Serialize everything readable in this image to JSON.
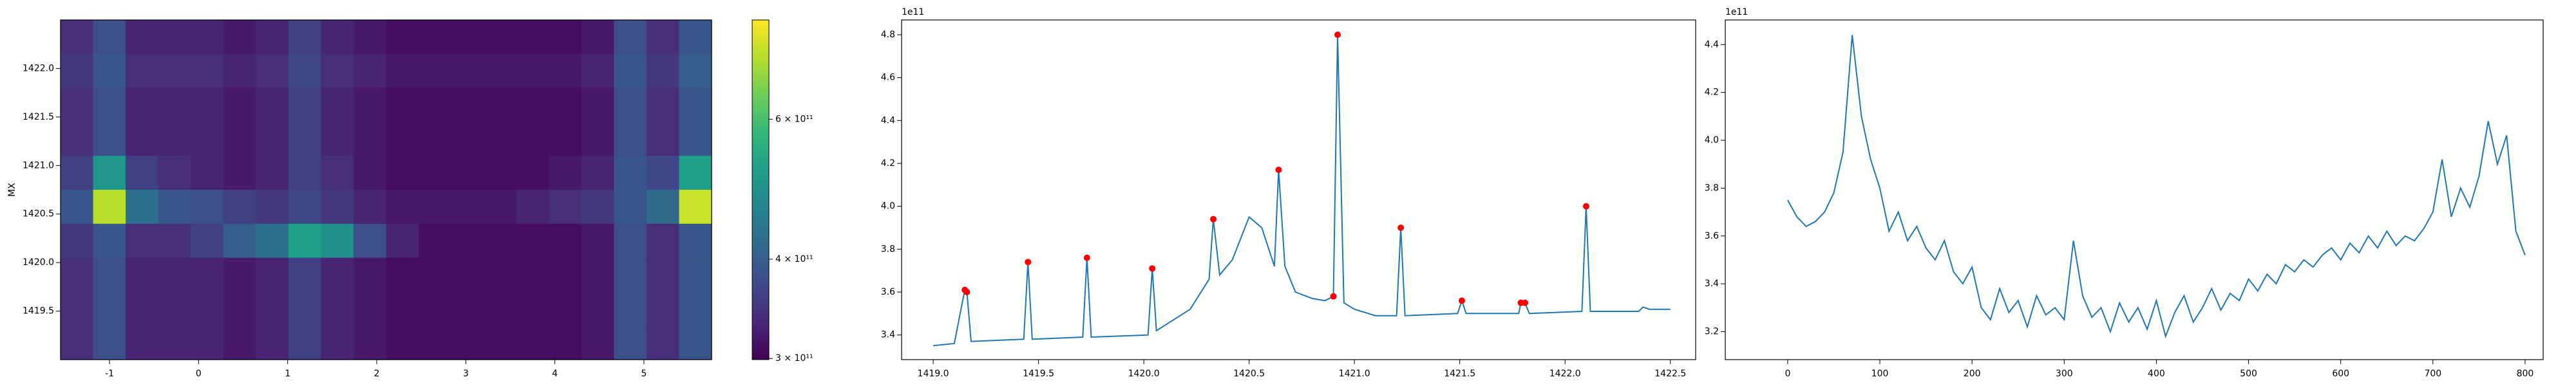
{
  "chart_data": [
    {
      "type": "heatmap",
      "ylabel": "MX",
      "xlim": [
        -1.55,
        5.76
      ],
      "ylim": [
        1419.0,
        1422.5
      ],
      "xticks": [
        -1,
        0,
        1,
        2,
        3,
        4,
        5
      ],
      "yticks": [
        {
          "value": 1419.5,
          "label": "1419.5"
        },
        {
          "value": 1420.0,
          "label": "1420.0"
        },
        {
          "value": 1420.5,
          "label": "1420.5"
        },
        {
          "value": 1421.0,
          "label": "1421.0"
        },
        {
          "value": 1421.5,
          "label": "1421.5"
        },
        {
          "value": 1422.0,
          "label": "1422.0"
        }
      ],
      "origin": "upper",
      "colormap": "viridis",
      "colorbar_scale": "log",
      "zlim": [
        299000000000.0,
        800000000000.0
      ],
      "zticks": [
        {
          "value": 300000000000.0,
          "label": "3 × 10¹¹"
        },
        {
          "value": 400000000000.0,
          "label": "4 × 10¹¹"
        },
        {
          "value": 600000000000.0,
          "label": "6 × 10¹¹"
        }
      ],
      "z": [
        [
          340000000000.0,
          380000000000.0,
          330000000000.0,
          330000000000.0,
          330000000000.0,
          320000000000.0,
          330000000000.0,
          360000000000.0,
          330000000000.0,
          320000000000.0,
          310000000000.0,
          310000000000.0,
          310000000000.0,
          310000000000.0,
          310000000000.0,
          310000000000.0,
          320000000000.0,
          380000000000.0,
          340000000000.0,
          390000000000.0
        ],
        [
          350000000000.0,
          390000000000.0,
          340000000000.0,
          340000000000.0,
          340000000000.0,
          330000000000.0,
          340000000000.0,
          370000000000.0,
          340000000000.0,
          330000000000.0,
          320000000000.0,
          320000000000.0,
          320000000000.0,
          320000000000.0,
          320000000000.0,
          320000000000.0,
          330000000000.0,
          390000000000.0,
          350000000000.0,
          400000000000.0
        ],
        [
          340000000000.0,
          380000000000.0,
          330000000000.0,
          330000000000.0,
          330000000000.0,
          320000000000.0,
          330000000000.0,
          360000000000.0,
          330000000000.0,
          320000000000.0,
          310000000000.0,
          310000000000.0,
          310000000000.0,
          310000000000.0,
          310000000000.0,
          310000000000.0,
          320000000000.0,
          380000000000.0,
          340000000000.0,
          390000000000.0
        ],
        [
          340000000000.0,
          380000000000.0,
          330000000000.0,
          330000000000.0,
          330000000000.0,
          320000000000.0,
          330000000000.0,
          360000000000.0,
          330000000000.0,
          320000000000.0,
          310000000000.0,
          310000000000.0,
          310000000000.0,
          310000000000.0,
          310000000000.0,
          310000000000.0,
          320000000000.0,
          380000000000.0,
          340000000000.0,
          390000000000.0
        ],
        [
          360000000000.0,
          500000000000.0,
          360000000000.0,
          340000000000.0,
          330000000000.0,
          320000000000.0,
          330000000000.0,
          360000000000.0,
          340000000000.0,
          320000000000.0,
          310000000000.0,
          310000000000.0,
          310000000000.0,
          310000000000.0,
          310000000000.0,
          320000000000.0,
          330000000000.0,
          390000000000.0,
          370000000000.0,
          520000000000.0
        ],
        [
          390000000000.0,
          720000000000.0,
          430000000000.0,
          390000000000.0,
          380000000000.0,
          360000000000.0,
          350000000000.0,
          370000000000.0,
          350000000000.0,
          330000000000.0,
          320000000000.0,
          320000000000.0,
          320000000000.0,
          320000000000.0,
          330000000000.0,
          340000000000.0,
          350000000000.0,
          390000000000.0,
          420000000000.0,
          740000000000.0
        ],
        [
          350000000000.0,
          390000000000.0,
          340000000000.0,
          340000000000.0,
          360000000000.0,
          400000000000.0,
          430000000000.0,
          520000000000.0,
          490000000000.0,
          380000000000.0,
          330000000000.0,
          310000000000.0,
          310000000000.0,
          310000000000.0,
          310000000000.0,
          310000000000.0,
          320000000000.0,
          380000000000.0,
          340000000000.0,
          390000000000.0
        ],
        [
          340000000000.0,
          380000000000.0,
          330000000000.0,
          330000000000.0,
          330000000000.0,
          320000000000.0,
          330000000000.0,
          360000000000.0,
          330000000000.0,
          320000000000.0,
          310000000000.0,
          310000000000.0,
          310000000000.0,
          310000000000.0,
          310000000000.0,
          310000000000.0,
          320000000000.0,
          380000000000.0,
          340000000000.0,
          390000000000.0
        ],
        [
          340000000000.0,
          380000000000.0,
          330000000000.0,
          330000000000.0,
          330000000000.0,
          320000000000.0,
          330000000000.0,
          360000000000.0,
          330000000000.0,
          320000000000.0,
          310000000000.0,
          310000000000.0,
          310000000000.0,
          310000000000.0,
          310000000000.0,
          310000000000.0,
          320000000000.0,
          380000000000.0,
          340000000000.0,
          390000000000.0
        ],
        [
          340000000000.0,
          380000000000.0,
          330000000000.0,
          330000000000.0,
          330000000000.0,
          320000000000.0,
          330000000000.0,
          360000000000.0,
          330000000000.0,
          320000000000.0,
          310000000000.0,
          310000000000.0,
          310000000000.0,
          310000000000.0,
          310000000000.0,
          310000000000.0,
          320000000000.0,
          380000000000.0,
          340000000000.0,
          390000000000.0
        ]
      ]
    },
    {
      "type": "line",
      "offset_label": "1e11",
      "xlim": [
        1418.85,
        1422.62
      ],
      "ylim": [
        3.285,
        4.869
      ],
      "xticks": [
        {
          "value": 1419.0,
          "label": "1419.0"
        },
        {
          "value": 1419.5,
          "label": "1419.5"
        },
        {
          "value": 1420.0,
          "label": "1420.0"
        },
        {
          "value": 1420.5,
          "label": "1420.5"
        },
        {
          "value": 1421.0,
          "label": "1421.0"
        },
        {
          "value": 1421.5,
          "label": "1421.5"
        },
        {
          "value": 1422.0,
          "label": "1422.0"
        },
        {
          "value": 1422.5,
          "label": "1422.5"
        }
      ],
      "yticks": [
        3.4,
        3.6,
        3.8,
        {
          "value": 4.0,
          "label": "4.0"
        },
        4.2,
        4.4,
        4.6,
        4.8
      ],
      "series": [
        {
          "color": "#1f77b4",
          "x": [
            1419.0,
            1419.1,
            1419.15,
            1419.16,
            1419.18,
            1419.43,
            1419.45,
            1419.47,
            1419.71,
            1419.73,
            1419.75,
            1420.02,
            1420.04,
            1420.06,
            1420.22,
            1420.31,
            1420.33,
            1420.36,
            1420.42,
            1420.5,
            1420.56,
            1420.62,
            1420.64,
            1420.67,
            1420.72,
            1420.8,
            1420.86,
            1420.9,
            1420.92,
            1420.95,
            1421.0,
            1421.1,
            1421.2,
            1421.22,
            1421.24,
            1421.49,
            1421.51,
            1421.53,
            1421.78,
            1421.79,
            1421.81,
            1421.83,
            1422.08,
            1422.1,
            1422.12,
            1422.35,
            1422.37,
            1422.4,
            1422.5
          ],
          "values": [
            3.35,
            3.36,
            3.61,
            3.6,
            3.37,
            3.38,
            3.74,
            3.38,
            3.39,
            3.76,
            3.39,
            3.4,
            3.71,
            3.42,
            3.52,
            3.66,
            3.94,
            3.68,
            3.75,
            3.95,
            3.9,
            3.72,
            4.17,
            3.72,
            3.6,
            3.57,
            3.56,
            3.58,
            4.8,
            3.55,
            3.52,
            3.49,
            3.49,
            3.9,
            3.49,
            3.5,
            3.56,
            3.5,
            3.5,
            3.55,
            3.55,
            3.5,
            3.51,
            4.0,
            3.51,
            3.51,
            3.53,
            3.52,
            3.52
          ]
        },
        {
          "color": "#ff0000",
          "marker": "o",
          "x": [
            1419.15,
            1419.16,
            1419.45,
            1419.73,
            1420.04,
            1420.33,
            1420.64,
            1420.92,
            1420.9,
            1421.22,
            1421.51,
            1421.79,
            1421.81,
            1422.1
          ],
          "values": [
            3.61,
            3.6,
            3.74,
            3.76,
            3.71,
            3.94,
            4.17,
            4.8,
            3.58,
            3.9,
            3.56,
            3.55,
            3.55,
            4.0
          ]
        }
      ]
    },
    {
      "type": "line",
      "offset_label": "1e11",
      "xlim": [
        -67.7,
        819.6
      ],
      "ylim": [
        3.083,
        4.503
      ],
      "xticks": [
        0,
        100,
        200,
        300,
        400,
        500,
        600,
        700,
        800
      ],
      "yticks": [
        3.2,
        3.4,
        3.6,
        3.8,
        {
          "value": 4.0,
          "label": "4.0"
        },
        4.2,
        4.4
      ],
      "series": [
        {
          "color": "#1f77b4",
          "x": [
            0,
            10,
            20,
            30,
            40,
            50,
            60,
            70,
            80,
            90,
            100,
            110,
            120,
            130,
            140,
            150,
            160,
            170,
            180,
            190,
            200,
            210,
            220,
            230,
            240,
            250,
            260,
            270,
            280,
            290,
            300,
            310,
            320,
            330,
            340,
            350,
            360,
            370,
            380,
            390,
            400,
            410,
            420,
            430,
            440,
            450,
            460,
            470,
            480,
            490,
            500,
            510,
            520,
            530,
            540,
            550,
            560,
            570,
            580,
            590,
            600,
            610,
            620,
            630,
            640,
            650,
            660,
            670,
            680,
            690,
            700,
            710,
            720,
            730,
            740,
            750,
            760,
            770,
            780,
            790,
            800
          ],
          "values": [
            3.75,
            3.68,
            3.64,
            3.66,
            3.7,
            3.78,
            3.95,
            4.44,
            4.1,
            3.92,
            3.8,
            3.62,
            3.7,
            3.58,
            3.64,
            3.55,
            3.5,
            3.58,
            3.45,
            3.4,
            3.47,
            3.3,
            3.25,
            3.38,
            3.28,
            3.33,
            3.22,
            3.35,
            3.27,
            3.3,
            3.25,
            3.58,
            3.35,
            3.26,
            3.3,
            3.2,
            3.32,
            3.24,
            3.3,
            3.21,
            3.33,
            3.18,
            3.28,
            3.35,
            3.24,
            3.3,
            3.38,
            3.29,
            3.36,
            3.33,
            3.42,
            3.37,
            3.44,
            3.4,
            3.48,
            3.45,
            3.5,
            3.47,
            3.52,
            3.55,
            3.5,
            3.57,
            3.53,
            3.6,
            3.55,
            3.62,
            3.56,
            3.6,
            3.58,
            3.63,
            3.7,
            3.92,
            3.68,
            3.8,
            3.72,
            3.85,
            4.08,
            3.9,
            4.02,
            3.62,
            3.52
          ]
        }
      ]
    }
  ]
}
